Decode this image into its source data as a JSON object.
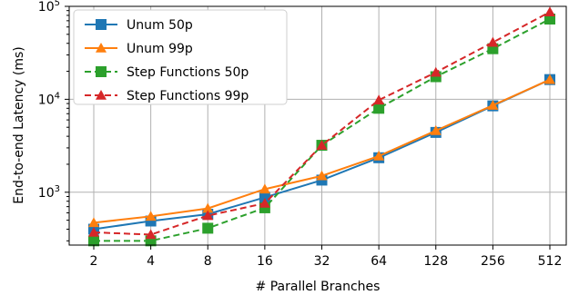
{
  "chart_data": {
    "type": "line",
    "xlabel": "# Parallel Branches",
    "ylabel": "End-to-end Latency (ms)",
    "x": [
      "2",
      "4",
      "8",
      "16",
      "32",
      "64",
      "128",
      "256",
      "512"
    ],
    "y_scale": "log",
    "ylim": [
      270,
      100000
    ],
    "y_ticks": [
      {
        "value": 1000,
        "label": "10^3"
      },
      {
        "value": 10000,
        "label": "10^4"
      },
      {
        "value": 100000,
        "label": "10^5"
      }
    ],
    "grid": true,
    "legend_position": "upper-left",
    "series": [
      {
        "name": "Unum 50p",
        "color": "#1f77b4",
        "line_style": "solid",
        "marker": "square",
        "values": [
          400,
          490,
          580,
          880,
          1350,
          2350,
          4400,
          8500,
          16300
        ]
      },
      {
        "name": "Unum 99p",
        "color": "#ff7f0e",
        "line_style": "solid",
        "marker": "triangle",
        "values": [
          470,
          550,
          670,
          1080,
          1500,
          2450,
          4600,
          8600,
          16300
        ]
      },
      {
        "name": "Step Functions 50p",
        "color": "#2ca02c",
        "line_style": "dashed",
        "marker": "square",
        "values": [
          300,
          300,
          410,
          680,
          3200,
          8000,
          17500,
          35000,
          73000
        ]
      },
      {
        "name": "Step Functions 99p",
        "color": "#d62728",
        "line_style": "dashed",
        "marker": "triangle",
        "values": [
          370,
          350,
          560,
          760,
          3200,
          9800,
          19500,
          41000,
          87000
        ]
      }
    ]
  }
}
